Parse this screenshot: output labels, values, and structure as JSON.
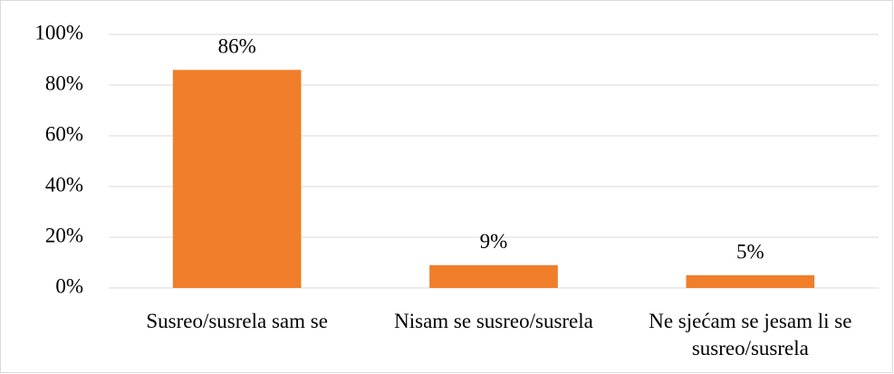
{
  "chart_data": {
    "type": "bar",
    "categories": [
      "Susreo/susrela sam se",
      "Nisam se susreo/susrela",
      "Ne sjećam se jesam li se susreo/susrela"
    ],
    "values": [
      86,
      9,
      5
    ],
    "value_labels": [
      "86%",
      "9%",
      "5%"
    ],
    "color": "#f07e2a",
    "ylim": [
      0,
      100
    ],
    "yticks": [
      {
        "value": 0,
        "label": "0%"
      },
      {
        "value": 20,
        "label": "20%"
      },
      {
        "value": 40,
        "label": "40%"
      },
      {
        "value": 60,
        "label": "60%"
      },
      {
        "value": 80,
        "label": "80%"
      },
      {
        "value": 100,
        "label": "100%"
      }
    ],
    "grid": true
  }
}
